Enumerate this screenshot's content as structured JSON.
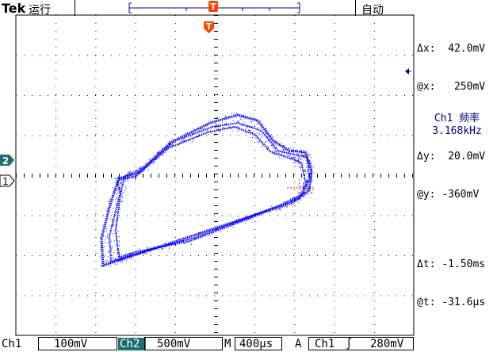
{
  "header": {
    "brand": "Tek",
    "run_state": "运行",
    "trigger_mode": "自动",
    "trigger_marker_letter": "T",
    "trigger_position_letter": "T"
  },
  "cursors": {
    "dx": "Δx:  42.0mV",
    "at_x": "@x:   250mV",
    "dy": "Δy:  20.0mV",
    "at_y": "@y: -360mV",
    "dt": "Δt: -1.50ms",
    "at_t": "@t: -31.6μs"
  },
  "measurement": {
    "label": "Ch1 频率",
    "value": "3.168kHz"
  },
  "channels": {
    "ch2_marker": "2",
    "ch1_marker": "1"
  },
  "status": {
    "ch1_label": "Ch1",
    "ch1_scale": "100mV",
    "ch2_label": "Ch2",
    "ch2_scale": "500mV",
    "timebase_label": "M",
    "timebase_value": "400μs",
    "trigger_label": "A",
    "trigger_source": "Ch1",
    "trigger_slope": "∫",
    "trigger_level": "280mV"
  },
  "colors": {
    "trace": "#0000ff",
    "ch2": "#1e6e6e",
    "trigger": "#ff4500",
    "cursor_marker": "#ff0000"
  }
}
